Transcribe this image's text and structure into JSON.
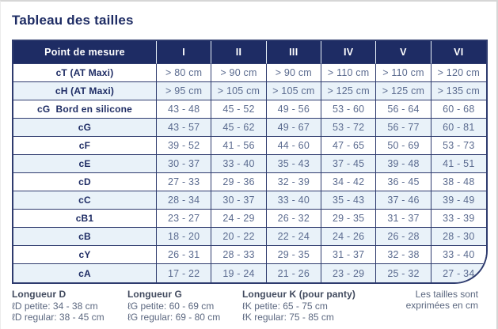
{
  "title": "Tableau des tailles",
  "colors": {
    "header_bg": "#1e2c64",
    "table_border": "#2e3b6e",
    "row_alt_bg": "#e9f2f9",
    "value_text": "#5b6b8f"
  },
  "table": {
    "measure_header": "Point de mesure",
    "size_headers": [
      "I",
      "II",
      "III",
      "IV",
      "V",
      "VI"
    ],
    "rows": [
      {
        "label": "cT (AT Maxi)",
        "values": [
          "> 80 cm",
          "> 90 cm",
          "> 90 cm",
          "> 110 cm",
          "> 110 cm",
          "> 120 cm"
        ]
      },
      {
        "label": "cH (AT Maxi)",
        "values": [
          "> 95 cm",
          "> 105 cm",
          "> 105 cm",
          "> 125 cm",
          "> 125 cm",
          "> 135 cm"
        ]
      },
      {
        "label": "cG  Bord en silicone",
        "values": [
          "43 - 48",
          "45 - 52",
          "49 - 56",
          "53 - 60",
          "56 - 64",
          "60 - 68"
        ]
      },
      {
        "label": "cG",
        "values": [
          "43 - 57",
          "45 - 62",
          "49 - 67",
          "53 - 72",
          "56 - 77",
          "60 - 81"
        ]
      },
      {
        "label": "cF",
        "values": [
          "39 - 52",
          "41 - 56",
          "44 - 60",
          "47 - 65",
          "50 - 69",
          "53 - 73"
        ]
      },
      {
        "label": "cE",
        "values": [
          "30 - 37",
          "33 - 40",
          "35 - 43",
          "37 - 45",
          "39 - 48",
          "41 - 51"
        ]
      },
      {
        "label": "cD",
        "values": [
          "27 - 33",
          "29 - 36",
          "32 - 39",
          "34 - 42",
          "36 - 45",
          "38 - 48"
        ]
      },
      {
        "label": "cC",
        "values": [
          "28 - 34",
          "30 - 37",
          "33 - 40",
          "35 - 43",
          "37 - 46",
          "39 - 49"
        ]
      },
      {
        "label": "cB1",
        "values": [
          "23 - 27",
          "24 - 29",
          "26 - 32",
          "29 - 35",
          "31 - 37",
          "33 - 39"
        ]
      },
      {
        "label": "cB",
        "values": [
          "18 - 20",
          "20 - 22",
          "22 - 24",
          "24 - 26",
          "26 - 28",
          "28 - 30"
        ]
      },
      {
        "label": "cY",
        "values": [
          "26 - 31",
          "28 - 33",
          "29 - 35",
          "31 - 37",
          "32 - 38",
          "33 - 40"
        ]
      },
      {
        "label": "cA",
        "values": [
          "17 - 22",
          "19 - 24",
          "21 - 26",
          "23 - 29",
          "25 - 32",
          "27 - 34"
        ]
      }
    ]
  },
  "footer": {
    "columns": [
      {
        "heading": "Longueur D",
        "lines": [
          "ℓD petite: 34 - 38 cm",
          "ℓD regular: 38 - 45 cm"
        ]
      },
      {
        "heading": "Longueur G",
        "lines": [
          "ℓG petite: 60 - 69 cm",
          "ℓG regular: 69 - 80 cm"
        ]
      },
      {
        "heading": "Longueur K (pour panty)",
        "lines": [
          "ℓK petite: 65 - 75 cm",
          "ℓK regular: 75 - 85 cm"
        ]
      }
    ],
    "note_lines": [
      "Les tailles sont",
      "exprimées en cm"
    ]
  }
}
